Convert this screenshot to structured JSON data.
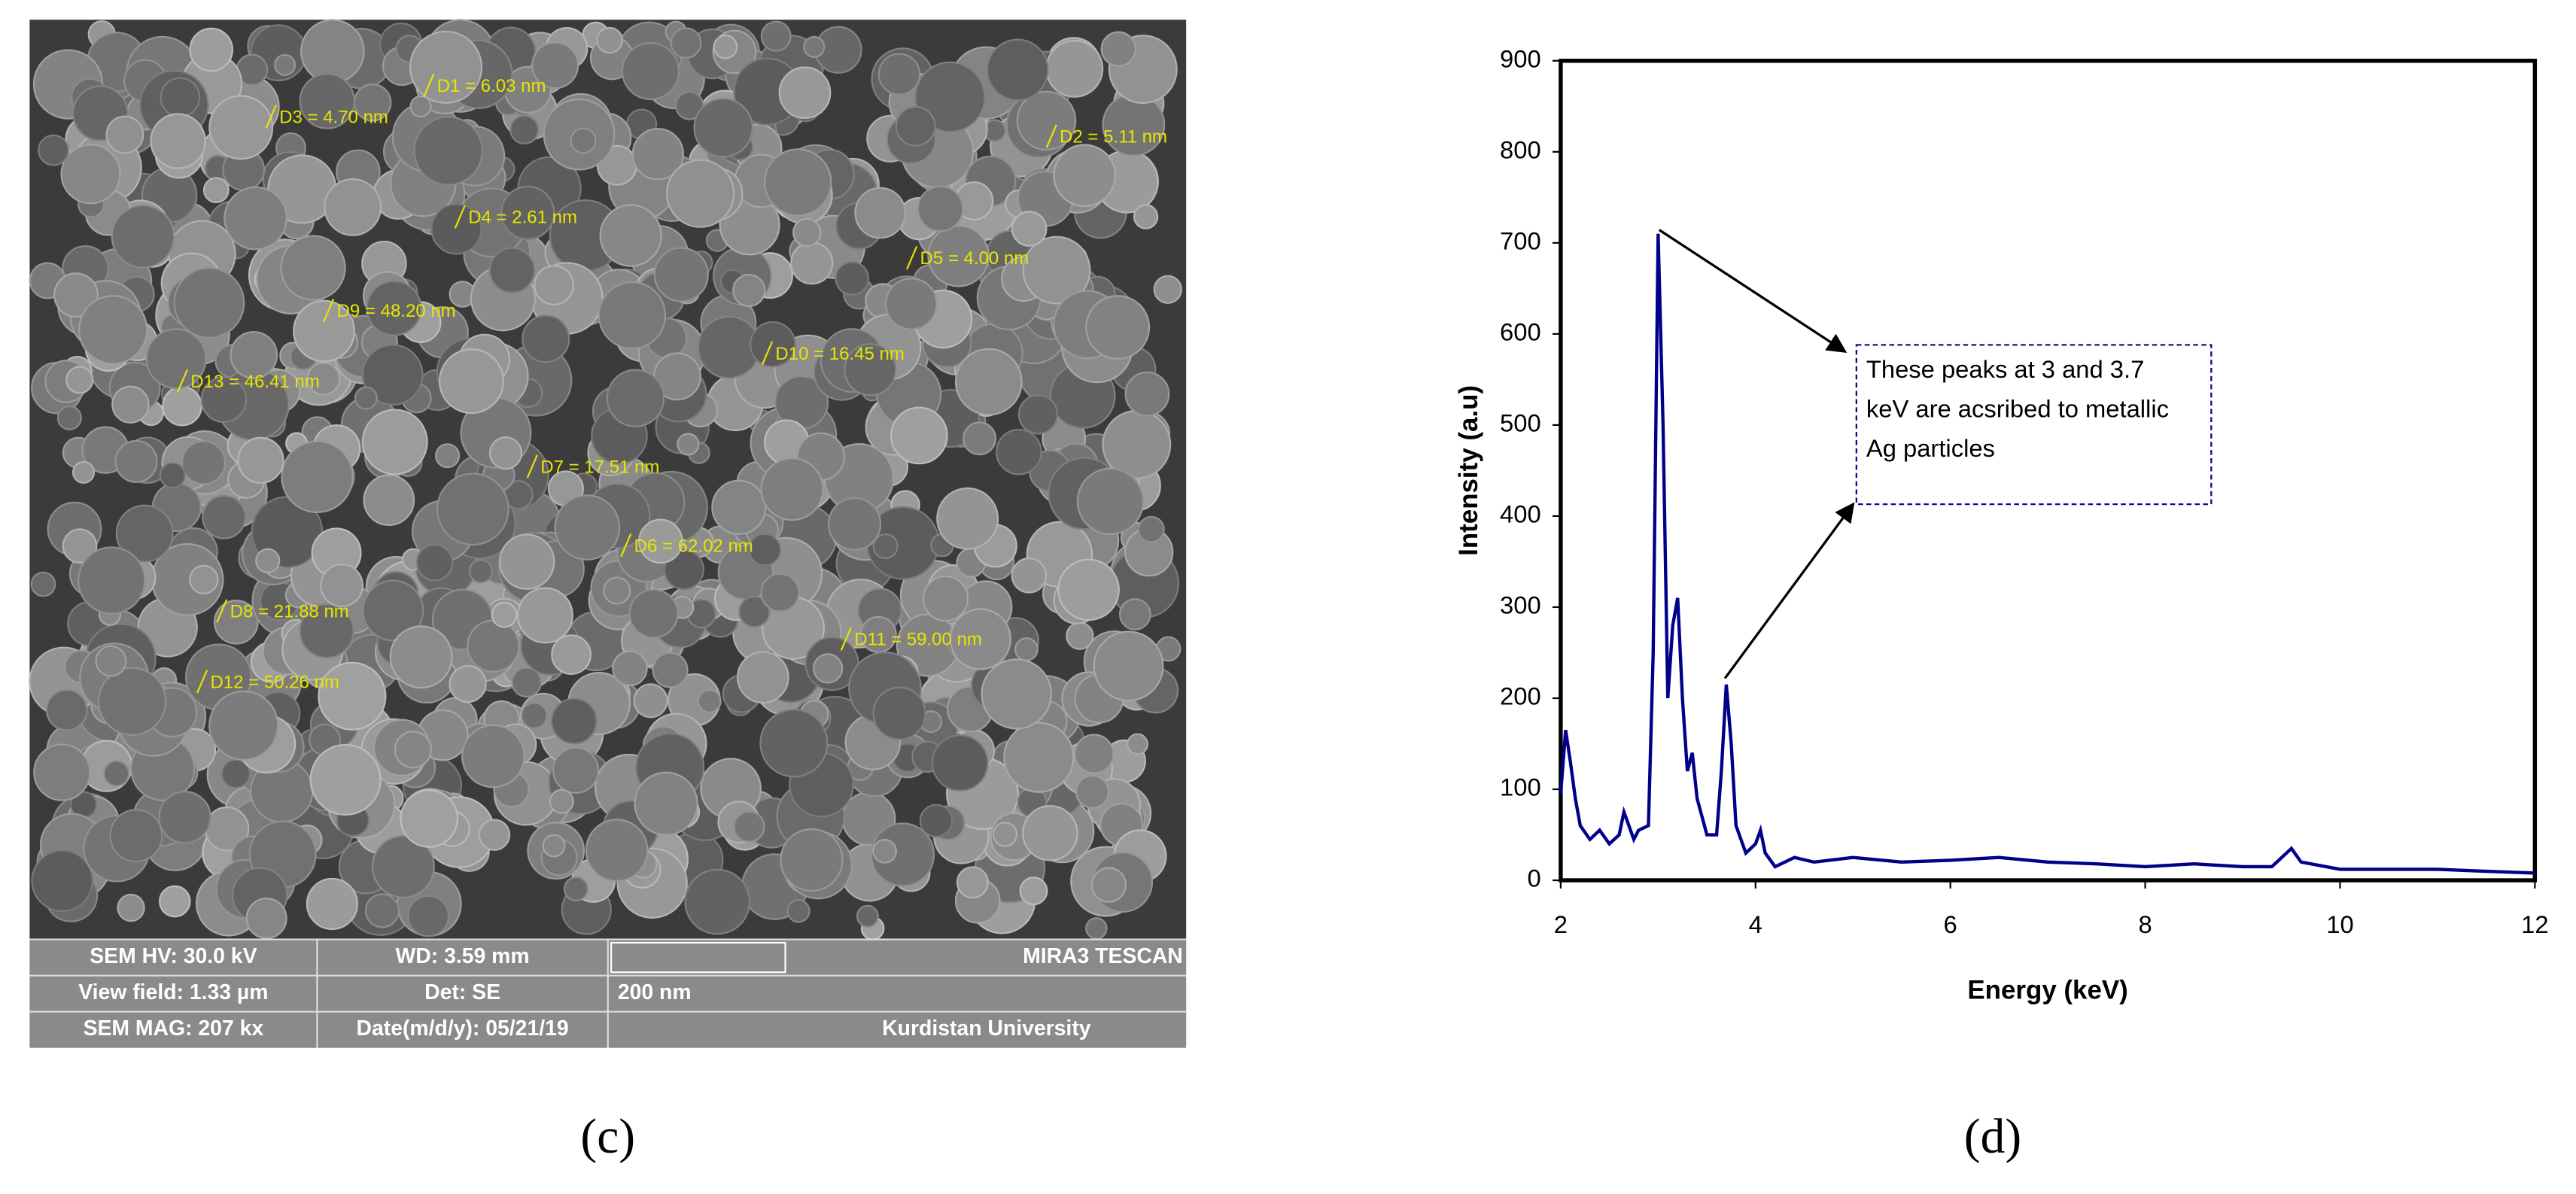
{
  "sem_image": {
    "labels": [
      "D1 = 6.03 nm",
      "D2 = 5.11 nm",
      "D3 = 4.70 nm",
      "D4 = 2.61 nm",
      "D5 = 4.00 nm",
      "D9 = 48.20 nm",
      "D10 = 16.45 nm",
      "D13 = 46.41 nm",
      "D7 = 17.51 nm",
      "D6 = 62.02 nm",
      "D8 = 21.88 nm",
      "D11 = 59.00 nm",
      "D12 = 50.26 nm"
    ],
    "info": [
      [
        "SEM HV: 30.0 kV",
        "WD: 3.59 mm",
        "MIRA3 TESCAN"
      ],
      [
        "View field: 1.33 µm",
        "Det: SE",
        "200 nm"
      ],
      [
        "SEM MAG: 207 kx",
        "Date(m/d/y): 05/21/19",
        "Kurdistan University"
      ]
    ]
  },
  "panel_labels": [
    "(c)",
    "(d)"
  ],
  "chart_data": {
    "type": "line",
    "x_label": "Energy (keV)",
    "y_label": "Intensity (a.u)",
    "x": [
      2.0,
      2.05,
      2.1,
      2.15,
      2.2,
      2.3,
      2.4,
      2.5,
      2.6,
      2.65,
      2.7,
      2.75,
      2.8,
      2.9,
      2.95,
      3.0,
      3.05,
      3.1,
      3.15,
      3.2,
      3.25,
      3.3,
      3.35,
      3.4,
      3.5,
      3.6,
      3.65,
      3.7,
      3.75,
      3.8,
      3.9,
      4.0,
      4.05,
      4.1,
      4.2,
      4.4,
      4.6,
      5.0,
      5.5,
      6.0,
      6.5,
      7.0,
      7.5,
      8.0,
      8.5,
      9.0,
      9.3,
      9.45,
      9.5,
      9.6,
      10.0,
      10.5,
      11.0,
      11.5,
      12.0
    ],
    "values": [
      95,
      165,
      130,
      90,
      60,
      45,
      55,
      40,
      50,
      75,
      60,
      45,
      55,
      60,
      250,
      710,
      500,
      200,
      280,
      310,
      200,
      120,
      140,
      90,
      50,
      50,
      120,
      215,
      150,
      60,
      30,
      40,
      55,
      30,
      15,
      25,
      20,
      25,
      20,
      22,
      25,
      20,
      18,
      15,
      18,
      15,
      15,
      30,
      35,
      20,
      12,
      12,
      12,
      10,
      8
    ],
    "color": "#00008b",
    "xlim": [
      2,
      12
    ],
    "ylim": [
      0,
      900
    ],
    "xticks": [
      2,
      4,
      6,
      8,
      10,
      12
    ],
    "yticks": [
      0,
      100,
      200,
      300,
      400,
      500,
      600,
      700,
      800,
      900
    ],
    "annotation": [
      "These peaks at 3 and 3.7",
      "keV are acsribed to metallic",
      "Ag particles"
    ]
  }
}
